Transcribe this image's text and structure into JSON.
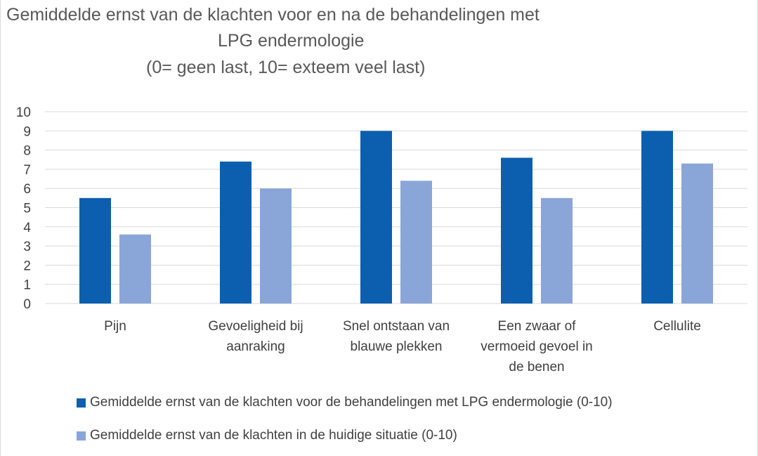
{
  "chart_data": {
    "type": "bar",
    "title_lines": [
      "Gemiddelde ernst van de klachten voor en na de behandelingen met",
      "LPG endermologie",
      "(0= geen last, 10= exteem veel last)"
    ],
    "categories": [
      [
        "Pijn"
      ],
      [
        "Gevoeligheid bij",
        "aanraking"
      ],
      [
        "Snel ontstaan van",
        "blauwe plekken"
      ],
      [
        "Een zwaar of",
        "vermoeid gevoel in",
        "de benen"
      ],
      [
        "Cellulite"
      ]
    ],
    "series": [
      {
        "name": "Gemiddelde ernst van de klachten voor de behandelingen met LPG endermologie  (0-10)",
        "color": "#0b5fae",
        "values": [
          5.5,
          7.4,
          9.0,
          7.6,
          9.0
        ]
      },
      {
        "name": "Gemiddelde ernst van de klachten in de huidige situatie  (0-10)",
        "color": "#8aa6d8",
        "values": [
          3.6,
          6.0,
          6.4,
          5.5,
          7.3
        ]
      }
    ],
    "ylim": [
      0,
      10
    ],
    "yticks": [
      "0",
      "1",
      "2",
      "3",
      "4",
      "5",
      "6",
      "7",
      "8",
      "9",
      "10"
    ],
    "grid": true,
    "gridColor": "#d9d9d9",
    "legend_position": "bottom"
  }
}
